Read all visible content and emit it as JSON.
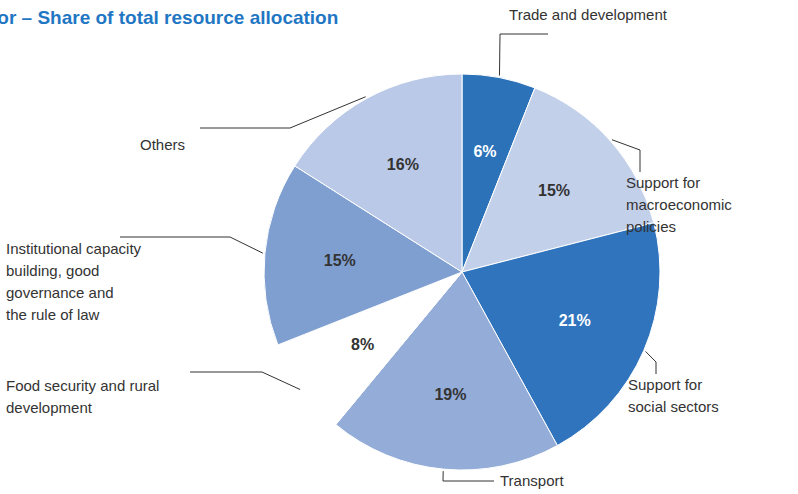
{
  "chart_data": {
    "type": "pie",
    "title": "EU Priority Sector – Share of total resource allocation",
    "categories": [
      "Trade and development",
      "Support for\nmacroeconomic\npolicies",
      "Support for\nsocial sectors",
      "Transport",
      "Food security and rural\ndevelopment",
      "Institutional capacity\nbuilding, good\ngovernance and\nthe rule of law",
      "Others"
    ],
    "values": [
      6,
      15,
      21,
      19,
      8,
      15,
      16
    ],
    "value_labels": [
      "6%",
      "15%",
      "21%",
      "19%",
      "8%",
      "15%",
      "16%"
    ],
    "data_labels": true,
    "colors": [
      "#2b72b8",
      "#c3d0ea",
      "#2f74bd",
      "#93acd8",
      "#ffffff",
      "#7f9fd1",
      "#bac9e7"
    ]
  }
}
